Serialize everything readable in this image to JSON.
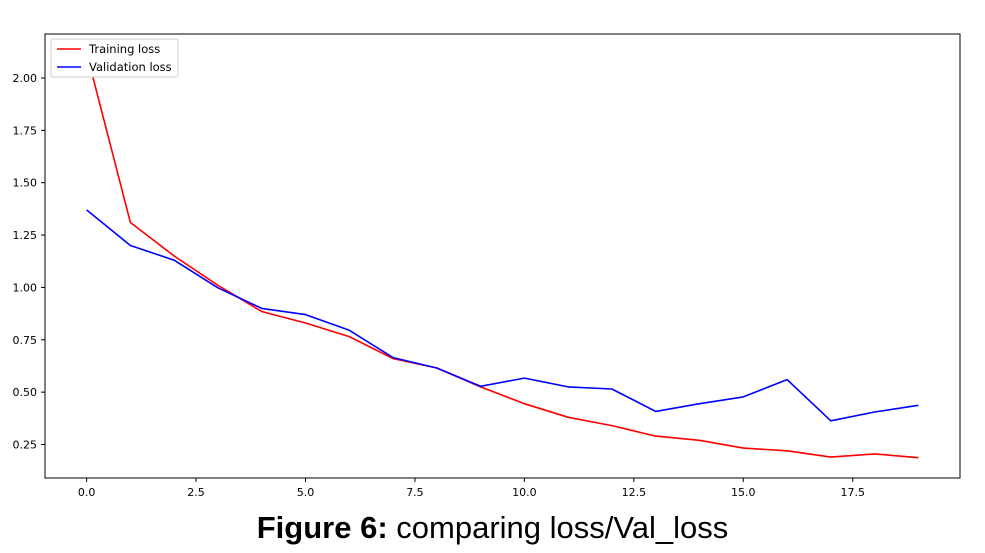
{
  "caption": {
    "label": "Figure 6:",
    "text": " comparing loss/Val_loss"
  },
  "chart_data": {
    "type": "line",
    "title": "",
    "xlabel": "",
    "ylabel": "",
    "xlim": [
      -0.95,
      19.95
    ],
    "ylim": [
      0.09,
      2.21
    ],
    "xticks": [
      0.0,
      2.5,
      5.0,
      7.5,
      10.0,
      12.5,
      15.0,
      17.5
    ],
    "xtick_labels": [
      "0.0",
      "2.5",
      "5.0",
      "7.5",
      "10.0",
      "12.5",
      "15.0",
      "17.5"
    ],
    "yticks": [
      0.25,
      0.5,
      0.75,
      1.0,
      1.25,
      1.5,
      1.75,
      2.0
    ],
    "ytick_labels": [
      "0.25",
      "0.50",
      "0.75",
      "1.00",
      "1.25",
      "1.50",
      "1.75",
      "2.00"
    ],
    "grid": false,
    "legend_position": "top-left",
    "x": [
      0,
      1,
      2,
      3,
      4,
      5,
      6,
      7,
      8,
      9,
      10,
      11,
      12,
      13,
      14,
      15,
      16,
      17,
      18,
      19
    ],
    "series": [
      {
        "name": "Training loss",
        "color": "#ff0000",
        "values": [
          2.12,
          1.31,
          1.15,
          1.01,
          0.885,
          0.83,
          0.765,
          0.66,
          0.615,
          0.525,
          0.445,
          0.38,
          0.34,
          0.29,
          0.27,
          0.233,
          0.22,
          0.19,
          0.205,
          0.187
        ]
      },
      {
        "name": "Validation loss",
        "color": "#0000ff",
        "values": [
          1.37,
          1.2,
          1.13,
          0.998,
          0.9,
          0.87,
          0.795,
          0.665,
          0.615,
          0.528,
          0.567,
          0.525,
          0.515,
          0.408,
          0.445,
          0.477,
          0.56,
          0.363,
          0.405,
          0.437
        ]
      }
    ]
  }
}
